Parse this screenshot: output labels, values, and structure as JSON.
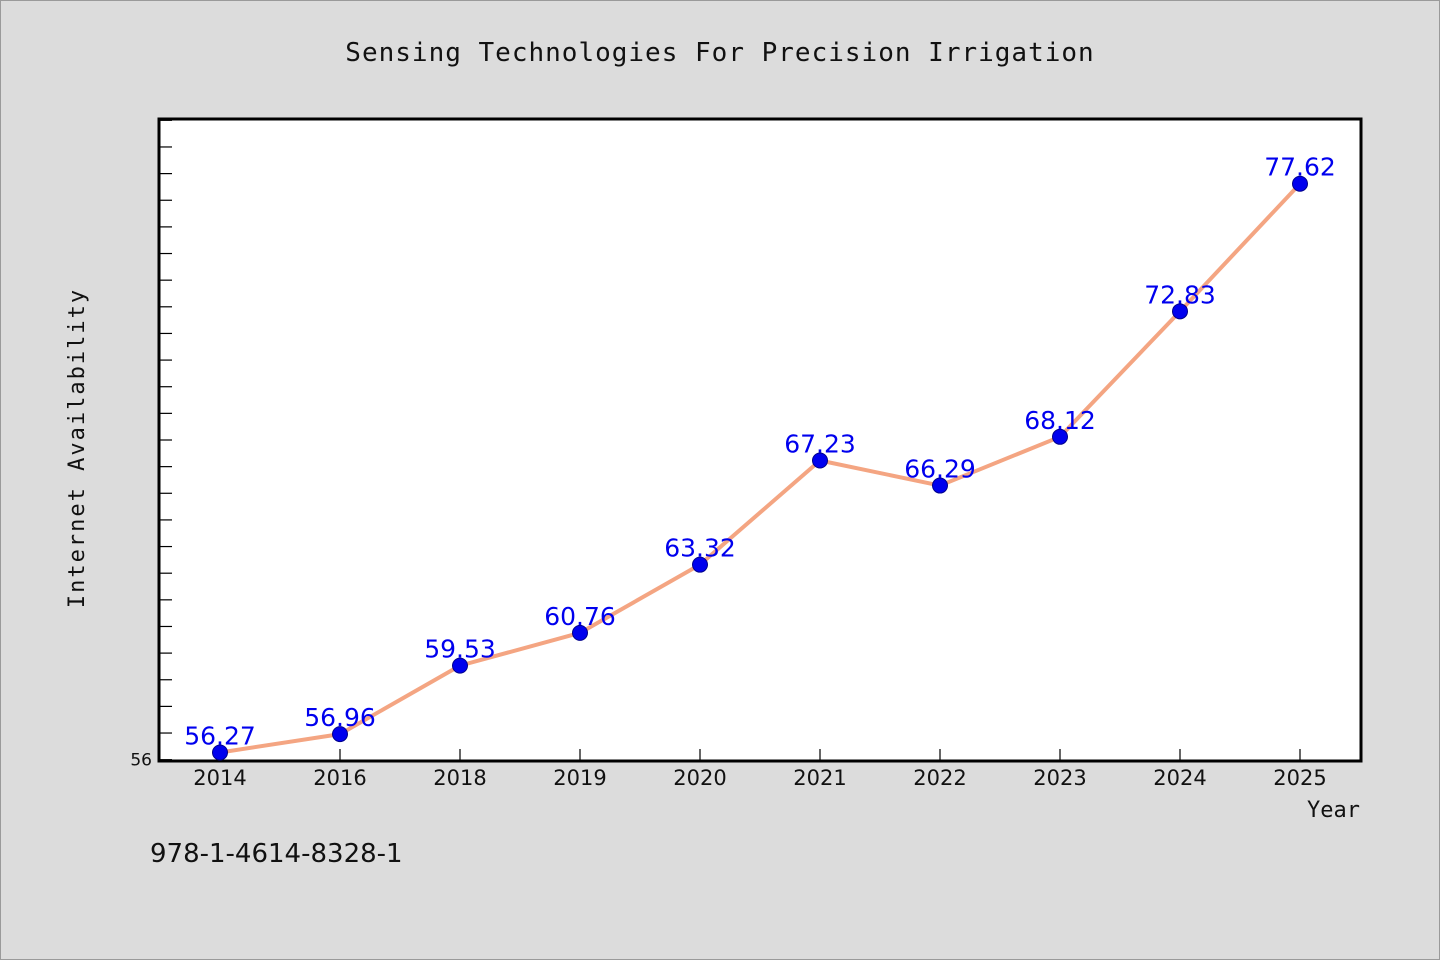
{
  "chart_data": {
    "type": "line",
    "title": "Sensing Technologies For Precision Irrigation",
    "xlabel": "Year",
    "ylabel": "Internet Availability",
    "categories": [
      "2014",
      "2016",
      "2018",
      "2019",
      "2020",
      "2021",
      "2022",
      "2023",
      "2024",
      "2025"
    ],
    "series": [
      {
        "values": [
          56.27,
          56.96,
          59.53,
          60.76,
          63.32,
          67.23,
          66.29,
          68.12,
          72.83,
          77.62
        ],
        "data_labels": [
          "56.27",
          "56.96",
          "59.53",
          "60.76",
          "63.32",
          "67.23",
          "66.29",
          "68.12",
          "72.83",
          "77.62"
        ],
        "line_color": "#f4a582",
        "marker_color": "#0000ee",
        "label_color": "#0000ee"
      }
    ],
    "ylim": [
      55.95,
      80.05
    ],
    "y_tick_labels": [
      {
        "value": 56,
        "label": "56"
      }
    ],
    "y_minor_ticks": {
      "start": 56,
      "end": 80,
      "step": 1
    },
    "grid": false,
    "legend": "none",
    "footnote": "978-1-4614-8328-1",
    "colors": {
      "background": "#dcdcdc",
      "plot_background": "#ffffff",
      "axis": "#000000"
    }
  }
}
